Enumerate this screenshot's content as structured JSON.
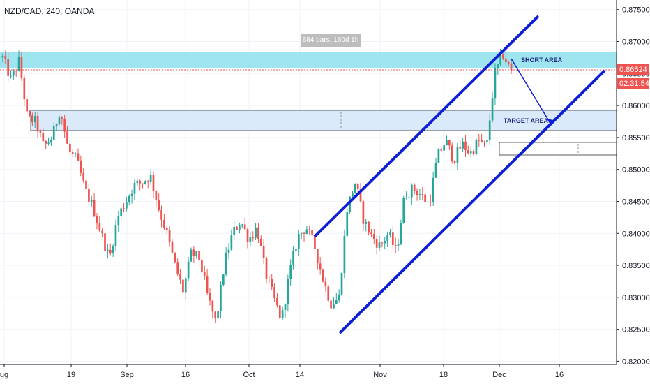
{
  "header": {
    "title": "NZD/CAD, 240, OANDA",
    "bars_info": "684 bars, 160d 1h"
  },
  "annotations": {
    "short_area": "SHORT AREA",
    "target_area": "TARGET AREA"
  },
  "price_scale": {
    "current_price": "0.86524",
    "countdown": "02:31:54"
  },
  "colors": {
    "up": "#26a69a",
    "down": "#ef5350",
    "channel": "#0d1fd6",
    "short_zone": "#7fdcea",
    "target_zone": "#dbeafb",
    "price_line": "#ef5350"
  },
  "chart_data": {
    "type": "candlestick",
    "title": "NZD/CAD, 240, OANDA",
    "y_ticks": [
      "0.87500",
      "0.87000",
      "0.86500",
      "0.86000",
      "0.85500",
      "0.85000",
      "0.84500",
      "0.84000",
      "0.83500",
      "0.83000",
      "0.82500",
      "0.82000"
    ],
    "x_ticks": [
      "ug",
      "19",
      "Sep",
      "16",
      "Oct",
      "14",
      "Nov",
      "18",
      "Dec",
      "16"
    ],
    "ylim": [
      0.8195,
      0.8765
    ],
    "price_path": [
      {
        "x": 0,
        "y": 0.8675
      },
      {
        "x": 1,
        "y": 0.864
      },
      {
        "x": 2,
        "y": 0.867
      },
      {
        "x": 3,
        "y": 0.858
      },
      {
        "x": 4,
        "y": 0.8575
      },
      {
        "x": 5,
        "y": 0.8535
      },
      {
        "x": 6,
        "y": 0.855
      },
      {
        "x": 7,
        "y": 0.8595
      },
      {
        "x": 8,
        "y": 0.853
      },
      {
        "x": 9,
        "y": 0.8515
      },
      {
        "x": 10,
        "y": 0.847
      },
      {
        "x": 11,
        "y": 0.844
      },
      {
        "x": 12,
        "y": 0.84
      },
      {
        "x": 13,
        "y": 0.836
      },
      {
        "x": 14,
        "y": 0.8425
      },
      {
        "x": 15,
        "y": 0.845
      },
      {
        "x": 16,
        "y": 0.8475
      },
      {
        "x": 17,
        "y": 0.848
      },
      {
        "x": 18,
        "y": 0.849
      },
      {
        "x": 19,
        "y": 0.844
      },
      {
        "x": 20,
        "y": 0.84
      },
      {
        "x": 21,
        "y": 0.835
      },
      {
        "x": 22,
        "y": 0.831
      },
      {
        "x": 23,
        "y": 0.837
      },
      {
        "x": 24,
        "y": 0.836
      },
      {
        "x": 25,
        "y": 0.83
      },
      {
        "x": 26,
        "y": 0.826
      },
      {
        "x": 27,
        "y": 0.835
      },
      {
        "x": 28,
        "y": 0.84
      },
      {
        "x": 29,
        "y": 0.842
      },
      {
        "x": 30,
        "y": 0.839
      },
      {
        "x": 31,
        "y": 0.841
      },
      {
        "x": 32,
        "y": 0.834
      },
      {
        "x": 33,
        "y": 0.83
      },
      {
        "x": 34,
        "y": 0.8265
      },
      {
        "x": 35,
        "y": 0.834
      },
      {
        "x": 36,
        "y": 0.8395
      },
      {
        "x": 37,
        "y": 0.841
      },
      {
        "x": 38,
        "y": 0.838
      },
      {
        "x": 39,
        "y": 0.833
      },
      {
        "x": 40,
        "y": 0.829
      },
      {
        "x": 41,
        "y": 0.83
      },
      {
        "x": 42,
        "y": 0.844
      },
      {
        "x": 43,
        "y": 0.848
      },
      {
        "x": 44,
        "y": 0.842
      },
      {
        "x": 45,
        "y": 0.8395
      },
      {
        "x": 46,
        "y": 0.838
      },
      {
        "x": 47,
        "y": 0.84
      },
      {
        "x": 48,
        "y": 0.837
      },
      {
        "x": 49,
        "y": 0.846
      },
      {
        "x": 50,
        "y": 0.847
      },
      {
        "x": 51,
        "y": 0.846
      },
      {
        "x": 52,
        "y": 0.8445
      },
      {
        "x": 53,
        "y": 0.852
      },
      {
        "x": 54,
        "y": 0.8545
      },
      {
        "x": 55,
        "y": 0.8515
      },
      {
        "x": 56,
        "y": 0.854
      },
      {
        "x": 57,
        "y": 0.8525
      },
      {
        "x": 58,
        "y": 0.8545
      },
      {
        "x": 59,
        "y": 0.8535
      },
      {
        "x": 60,
        "y": 0.865
      },
      {
        "x": 61,
        "y": 0.868
      },
      {
        "x": 62,
        "y": 0.8652
      }
    ]
  }
}
